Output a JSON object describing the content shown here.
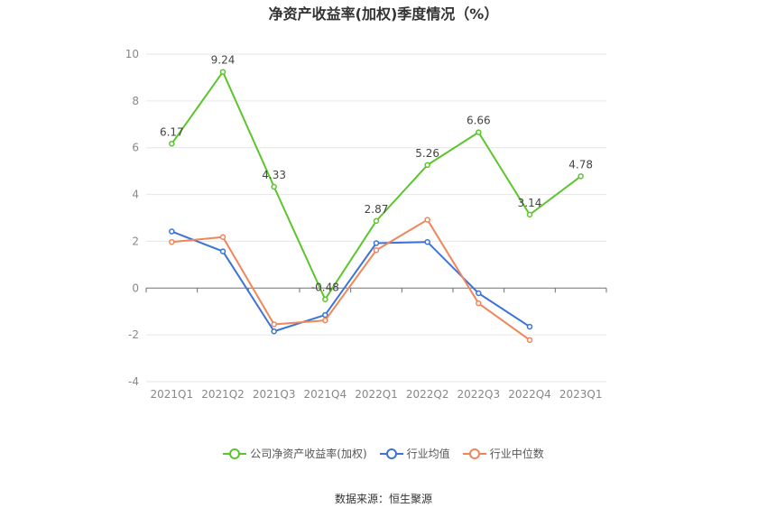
{
  "chart_data": {
    "type": "line",
    "title": "净资产收益率(加权)季度情况（%）",
    "categories": [
      "2021Q1",
      "2021Q2",
      "2021Q3",
      "2021Q4",
      "2022Q1",
      "2022Q2",
      "2022Q3",
      "2022Q4",
      "2023Q1"
    ],
    "ylim": [
      -4,
      10
    ],
    "yticks": [
      10,
      8,
      6,
      4,
      2,
      0,
      -2,
      -4
    ],
    "series": [
      {
        "name": "公司净资产收益率(加权)",
        "color": "#5cc52b",
        "labels": true,
        "values": [
          6.17,
          9.24,
          4.33,
          -0.48,
          2.87,
          5.26,
          6.66,
          3.14,
          4.78
        ]
      },
      {
        "name": "行业均值",
        "color": "#3b74d6",
        "labels": false,
        "values": [
          2.42,
          1.57,
          -1.85,
          -1.15,
          1.92,
          1.97,
          -0.22,
          -1.65,
          null
        ]
      },
      {
        "name": "行业中位数",
        "color": "#f0855a",
        "labels": false,
        "values": [
          1.97,
          2.18,
          -1.55,
          -1.38,
          1.62,
          2.92,
          -0.65,
          -2.22,
          null
        ]
      }
    ]
  },
  "source": "数据来源：恒生聚源"
}
